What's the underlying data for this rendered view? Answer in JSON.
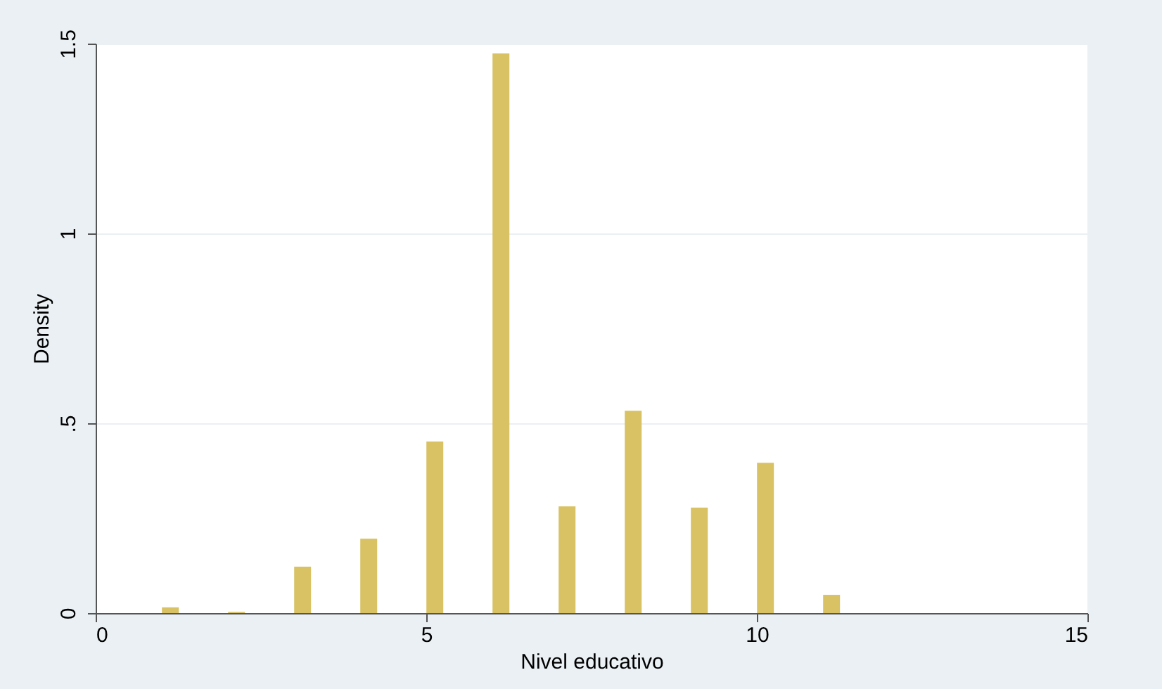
{
  "chart_data": {
    "type": "bar",
    "xlabel": "Nivel educativo",
    "ylabel": "Density",
    "x": [
      1.13,
      2.13,
      3.13,
      4.13,
      5.13,
      6.13,
      7.13,
      8.13,
      9.13,
      10.13,
      11.13
    ],
    "values": [
      0.015,
      0.003,
      0.122,
      0.196,
      0.452,
      1.474,
      0.281,
      0.533,
      0.278,
      0.396,
      0.048
    ],
    "color": "#d8c263",
    "xlim": [
      0,
      15
    ],
    "xticks": [
      0,
      5,
      10,
      15
    ],
    "ylim": [
      0,
      1.5
    ],
    "yticks": [
      {
        "value": 0,
        "label": "0"
      },
      {
        "value": 0.5,
        "label": ".5"
      },
      {
        "value": 1,
        "label": "1"
      },
      {
        "value": 1.5,
        "label": "1.5"
      }
    ],
    "grid": "y"
  }
}
